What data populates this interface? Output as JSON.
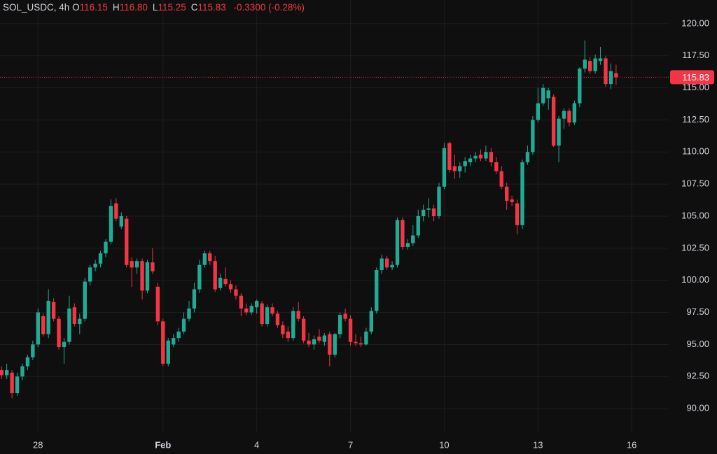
{
  "header": {
    "symbol": "SOL_USDC, 4h",
    "fields": [
      {
        "key": "O",
        "text": "116.15"
      },
      {
        "key": "H",
        "text": "116.80"
      },
      {
        "key": "L",
        "text": "115.25"
      },
      {
        "key": "C",
        "text": "115.83"
      }
    ],
    "change": "-0.3300 (-0.28%)"
  },
  "chart_data": {
    "type": "candlestick",
    "up_color": "#22ab94",
    "down_color": "#f23645",
    "grid": true,
    "xlim": [
      -0.3,
      128.1
    ],
    "ylim": [
      88.15,
      121.85
    ],
    "xticks": [
      {
        "value": 7,
        "label": "28"
      },
      {
        "value": 31,
        "label": "Feb"
      },
      {
        "value": 49,
        "label": "4"
      },
      {
        "value": 67,
        "label": "7"
      },
      {
        "value": 85,
        "label": "10"
      },
      {
        "value": 103,
        "label": "13"
      },
      {
        "value": 121,
        "label": "16"
      }
    ],
    "yticks": [
      {
        "value": 90,
        "label": "90.00"
      },
      {
        "value": 92.5,
        "label": "92.50"
      },
      {
        "value": 95,
        "label": "95.00"
      },
      {
        "value": 97.5,
        "label": "97.50"
      },
      {
        "value": 100,
        "label": "100.00"
      },
      {
        "value": 102.5,
        "label": "102.50"
      },
      {
        "value": 105,
        "label": "105.00"
      },
      {
        "value": 107.5,
        "label": "107.50"
      },
      {
        "value": 110,
        "label": "110.00"
      },
      {
        "value": 112.5,
        "label": "112.50"
      },
      {
        "value": 115,
        "label": "115.00"
      },
      {
        "value": 117.5,
        "label": "117.50"
      },
      {
        "value": 120,
        "label": "120.00"
      }
    ],
    "x": [
      0,
      1,
      2,
      3,
      4,
      5,
      6,
      7,
      8,
      9,
      10,
      11,
      12,
      13,
      14,
      15,
      16,
      17,
      18,
      19,
      20,
      21,
      22,
      23,
      24,
      25,
      26,
      27,
      28,
      29,
      30,
      31,
      32,
      33,
      34,
      35,
      36,
      37,
      38,
      39,
      40,
      41,
      42,
      43,
      44,
      45,
      46,
      47,
      48,
      49,
      50,
      51,
      52,
      53,
      54,
      55,
      56,
      57,
      58,
      59,
      60,
      61,
      62,
      63,
      64,
      65,
      66,
      67,
      68,
      69,
      70,
      71,
      72,
      73,
      74,
      75,
      76,
      77,
      78,
      79,
      80,
      81,
      82,
      83,
      84,
      85,
      86,
      87,
      88,
      89,
      90,
      91,
      92,
      93,
      94,
      95,
      96,
      97,
      98,
      99,
      100,
      101,
      102,
      103,
      104,
      105,
      106,
      107,
      108,
      109,
      110,
      111,
      112,
      113,
      114,
      115,
      116,
      117,
      118
    ],
    "open": [
      93.0,
      92.6,
      92.8,
      91.2,
      92.5,
      93.3,
      94.0,
      95.0,
      97.2,
      95.8,
      98.3,
      97.0,
      94.8,
      95.2,
      97.9,
      96.6,
      97.0,
      99.9,
      101.0,
      101.3,
      102.1,
      103.0,
      106.0,
      104.2,
      104.8,
      101.5,
      101.0,
      101.5,
      99.2,
      101.4,
      99.5,
      96.8,
      93.5,
      95.0,
      95.5,
      96.0,
      97.0,
      97.8,
      99.3,
      101.2,
      102.1,
      101.5,
      99.4,
      100.1,
      99.7,
      99.3,
      98.8,
      97.8,
      97.5,
      97.9,
      98.2,
      96.6,
      97.9,
      97.4,
      96.5,
      96.0,
      95.5,
      97.6,
      97.0,
      95.3,
      95.0,
      95.6,
      95.2,
      95.8,
      94.2,
      95.8,
      97.4,
      97.0,
      95.2,
      95.1,
      95.0,
      96.0,
      97.6,
      100.8,
      101.7,
      101.0,
      101.2,
      104.7,
      102.6,
      102.9,
      103.5,
      105.0,
      105.5,
      105.6,
      105.0,
      107.3,
      110.7,
      108.9,
      108.5,
      108.9,
      109.2,
      109.5,
      109.8,
      109.5,
      110.0,
      109.2,
      108.5,
      107.3,
      106.3,
      106.0,
      104.3,
      109.2,
      110.0,
      112.5,
      113.8,
      114.2,
      114.3,
      110.5,
      112.6,
      113.2,
      112.3,
      113.8,
      116.5,
      117.1,
      116.3,
      117.1,
      117.3,
      115.3,
      116.15
    ],
    "high": [
      93.3,
      93.5,
      93.0,
      92.8,
      93.5,
      94.2,
      95.3,
      97.8,
      97.4,
      99.3,
      98.6,
      97.2,
      95.5,
      98.8,
      98.2,
      97.4,
      100.2,
      101.2,
      101.6,
      102.3,
      103.2,
      106.3,
      106.4,
      105.3,
      105.0,
      101.8,
      101.7,
      101.7,
      101.6,
      102.5,
      99.8,
      97.0,
      95.5,
      95.8,
      96.3,
      97.5,
      98.4,
      99.8,
      101.6,
      102.3,
      102.3,
      101.9,
      100.5,
      101.0,
      100.0,
      99.6,
      99.0,
      98.2,
      98.2,
      98.5,
      98.4,
      98.1,
      98.2,
      97.6,
      96.8,
      96.4,
      97.9,
      98.3,
      97.2,
      95.9,
      95.7,
      96.2,
      95.9,
      96.0,
      95.9,
      97.5,
      97.8,
      97.3,
      95.8,
      95.6,
      96.3,
      97.9,
      101.0,
      102.0,
      101.9,
      101.5,
      104.9,
      104.9,
      103.2,
      104.3,
      105.5,
      105.9,
      106.4,
      105.9,
      107.6,
      110.7,
      110.8,
      109.8,
      109.2,
      109.6,
      109.8,
      110.0,
      110.2,
      110.5,
      110.3,
      109.6,
      108.9,
      107.6,
      106.6,
      106.3,
      109.4,
      110.5,
      112.8,
      115.0,
      115.3,
      115.0,
      114.5,
      112.8,
      113.4,
      113.4,
      114.0,
      116.6,
      118.7,
      117.4,
      117.6,
      118.2,
      117.5,
      116.9,
      116.8
    ],
    "low": [
      92.3,
      92.3,
      90.8,
      91.0,
      92.2,
      93.0,
      93.8,
      94.8,
      95.6,
      95.5,
      96.8,
      94.6,
      93.5,
      95.0,
      96.4,
      95.8,
      96.8,
      99.6,
      100.7,
      101.0,
      101.8,
      102.8,
      104.6,
      104.0,
      101.0,
      99.5,
      100.5,
      98.5,
      99.0,
      100.5,
      96.5,
      93.3,
      93.3,
      94.8,
      95.2,
      95.8,
      96.8,
      97.5,
      99.0,
      101.0,
      101.2,
      99.1,
      99.2,
      99.5,
      99.0,
      98.5,
      97.2,
      97.3,
      97.3,
      97.4,
      96.4,
      96.4,
      97.2,
      96.3,
      95.5,
      95.2,
      95.3,
      96.8,
      95.1,
      94.8,
      94.6,
      95.1,
      94.9,
      93.3,
      94.0,
      95.5,
      96.8,
      94.9,
      94.9,
      94.8,
      94.9,
      95.8,
      97.4,
      100.5,
      100.8,
      100.8,
      101.0,
      102.4,
      102.4,
      102.7,
      103.3,
      104.6,
      104.9,
      104.6,
      104.8,
      107.1,
      108.4,
      107.9,
      108.0,
      108.4,
      108.9,
      109.2,
      109.3,
      109.3,
      108.9,
      108.3,
      107.1,
      105.5,
      105.8,
      103.6,
      104.0,
      109.0,
      109.8,
      112.3,
      113.6,
      113.3,
      110.4,
      109.2,
      111.8,
      112.0,
      112.1,
      113.5,
      116.2,
      116.1,
      116.1,
      116.8,
      115.1,
      114.9,
      115.25
    ],
    "close": [
      92.6,
      93.0,
      91.2,
      92.5,
      93.3,
      94.0,
      95.0,
      97.5,
      95.8,
      98.4,
      97.0,
      94.8,
      95.2,
      97.8,
      96.6,
      97.0,
      99.9,
      101.0,
      101.3,
      102.1,
      103.0,
      105.8,
      104.8,
      105.0,
      101.2,
      101.0,
      101.5,
      99.2,
      101.4,
      100.7,
      96.8,
      93.5,
      95.3,
      95.5,
      96.0,
      97.0,
      97.8,
      99.3,
      101.2,
      102.1,
      101.5,
      99.3,
      100.2,
      99.7,
      99.3,
      98.8,
      97.8,
      97.5,
      98.0,
      98.4,
      96.6,
      97.9,
      97.4,
      96.5,
      95.8,
      95.5,
      97.6,
      97.0,
      95.3,
      95.0,
      95.4,
      95.3,
      95.7,
      94.2,
      95.8,
      97.3,
      97.0,
      95.2,
      95.1,
      95.0,
      96.0,
      97.6,
      100.8,
      101.7,
      101.0,
      101.2,
      104.7,
      102.6,
      102.9,
      103.5,
      105.0,
      105.5,
      105.6,
      105.0,
      107.3,
      110.3,
      108.6,
      108.5,
      108.9,
      109.3,
      109.5,
      109.7,
      109.5,
      110.0,
      109.2,
      108.5,
      107.3,
      106.2,
      106.1,
      104.3,
      109.2,
      110.0,
      112.5,
      113.8,
      115.0,
      114.8,
      110.5,
      112.6,
      113.2,
      112.3,
      113.8,
      116.5,
      117.2,
      116.3,
      117.3,
      117.3,
      115.3,
      116.3,
      115.83
    ]
  }
}
